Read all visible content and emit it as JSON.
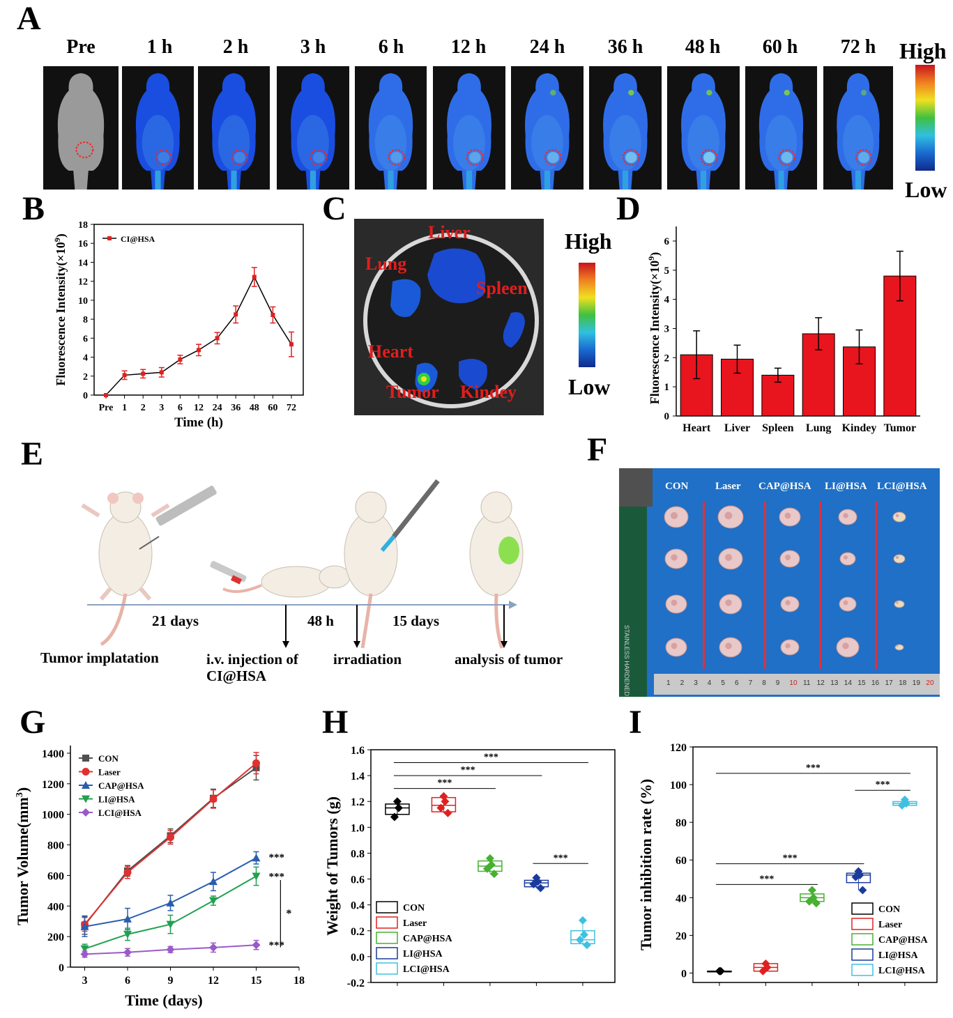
{
  "panel_letters": [
    "A",
    "B",
    "C",
    "D",
    "E",
    "F",
    "G",
    "H",
    "I"
  ],
  "panel_a": {
    "timepoints": [
      "Pre",
      "1 h",
      "2 h",
      "3 h",
      "6 h",
      "12 h",
      "24 h",
      "36 h",
      "48 h",
      "60 h",
      "72 h"
    ],
    "scale_high": "High",
    "scale_low": "Low"
  },
  "panel_c": {
    "organs": [
      "Liver",
      "Lung",
      "Spleen",
      "Heart",
      "Tumor",
      "Kindey"
    ],
    "scale_high": "High",
    "scale_low": "Low"
  },
  "panel_e": {
    "durations": [
      "21 days",
      "48 h",
      "15 days"
    ],
    "events": [
      "Tumor implatation",
      "i.v. injection of",
      "CI@HSA",
      "irradiation",
      "analysis of tumor"
    ]
  },
  "panel_f": {
    "groups": [
      "CON",
      "Laser",
      "CAP@HSA",
      "LI@HSA",
      "LCI@HSA"
    ],
    "ruler_text": "STAINLESS HARDENED",
    "ruler_ticks": [
      "1",
      "2",
      "3",
      "4",
      "5",
      "6",
      "7",
      "8",
      "9",
      "10",
      "11",
      "12",
      "13",
      "14",
      "15",
      "16",
      "17",
      "18",
      "19",
      "20"
    ]
  },
  "chart_data": [
    {
      "id": "B",
      "type": "line",
      "xlabel": "Time (h)",
      "ylabel": "Fluorescence Intensity(×10",
      "ylabel_sup": "9",
      "ylabel_end": ")",
      "categories": [
        "Pre",
        "1",
        "2",
        "3",
        "6",
        "12",
        "24",
        "36",
        "48",
        "60",
        "72"
      ],
      "series": [
        {
          "name": "CI@HSA",
          "values": [
            0,
            2.1,
            2.25,
            2.4,
            3.75,
            4.75,
            6.0,
            8.5,
            12.45,
            8.45,
            5.35
          ],
          "errors": [
            0,
            0.45,
            0.45,
            0.5,
            0.45,
            0.6,
            0.6,
            0.9,
            1.0,
            0.85,
            1.3
          ],
          "color": "#e02020"
        }
      ],
      "ylim": [
        0,
        18
      ],
      "yticks": [
        "0",
        "2",
        "4",
        "6",
        "8",
        "10",
        "12",
        "14",
        "16",
        "18"
      ],
      "legend_position": "top-left"
    },
    {
      "id": "D",
      "type": "bar",
      "xlabel": "",
      "ylabel": "Fluorescence Intensity(×10",
      "ylabel_sup": "9",
      "ylabel_end": ")",
      "categories": [
        "Heart",
        "Liver",
        "Spleen",
        "Lung",
        "Kindey",
        "Tumor"
      ],
      "values": [
        2.1,
        1.95,
        1.4,
        2.82,
        2.37,
        4.8
      ],
      "errors": [
        0.82,
        0.48,
        0.24,
        0.55,
        0.58,
        0.85
      ],
      "ylim": [
        0,
        6.5
      ],
      "yticks": [
        "0",
        "1",
        "2",
        "3",
        "4",
        "5",
        "6"
      ],
      "bar_color": "#e8141e"
    },
    {
      "id": "G",
      "type": "line",
      "xlabel": "Time (days)",
      "ylabel": "Tumor Volume(mm",
      "ylabel_sup": "3",
      "ylabel_end": ")",
      "x": [
        3,
        6,
        9,
        12,
        15
      ],
      "xlim": [
        2,
        18
      ],
      "xticks": [
        "3",
        "6",
        "9",
        "12",
        "15",
        "18"
      ],
      "ylim": [
        0,
        1450
      ],
      "yticks": [
        "0",
        "200",
        "400",
        "600",
        "800",
        "1000",
        "1200",
        "1400"
      ],
      "series": [
        {
          "name": "CON",
          "values": [
            275,
            630,
            860,
            1105,
            1305
          ],
          "errors": [
            60,
            35,
            45,
            60,
            80
          ],
          "color": "#505050",
          "marker": "square"
        },
        {
          "name": "Laser",
          "values": [
            280,
            620,
            850,
            1100,
            1335
          ],
          "errors": [
            45,
            40,
            45,
            60,
            70
          ],
          "color": "#e03030",
          "marker": "circle"
        },
        {
          "name": "CAP@HSA",
          "values": [
            265,
            315,
            420,
            560,
            715
          ],
          "errors": [
            65,
            70,
            50,
            60,
            40
          ],
          "color": "#2a5db0",
          "marker": "triangle"
        },
        {
          "name": "LI@HSA",
          "values": [
            120,
            215,
            280,
            435,
            595
          ],
          "errors": [
            30,
            40,
            60,
            30,
            60
          ],
          "color": "#22a050",
          "marker": "triangle-down"
        },
        {
          "name": "LCI@HSA",
          "values": [
            85,
            97,
            115,
            128,
            145
          ],
          "errors": [
            20,
            25,
            20,
            30,
            30
          ],
          "color": "#9a5ac8",
          "marker": "diamond"
        }
      ],
      "annotations": [
        "***",
        "***",
        "***",
        "*"
      ],
      "legend_position": "top-left"
    },
    {
      "id": "H",
      "type": "box",
      "xlabel": "",
      "ylabel": "Weight of Tumors (g)",
      "ylim": [
        -0.2,
        1.6
      ],
      "yticks": [
        "-0.2",
        "0.0",
        "0.2",
        "0.4",
        "0.6",
        "0.8",
        "1.0",
        "1.2",
        "1.4",
        "1.6"
      ],
      "series": [
        {
          "name": "CON",
          "q1": 1.1,
          "median": 1.15,
          "q3": 1.18,
          "points": [
            1.2,
            1.15,
            1.08
          ],
          "color": "#000000"
        },
        {
          "name": "Laser",
          "q1": 1.12,
          "median": 1.17,
          "q3": 1.23,
          "points": [
            1.24,
            1.2,
            1.15,
            1.11
          ],
          "color": "#e02020"
        },
        {
          "name": "CAP@HSA",
          "q1": 0.66,
          "median": 0.7,
          "q3": 0.74,
          "points": [
            0.76,
            0.71,
            0.68,
            0.64
          ],
          "color": "#46b030"
        },
        {
          "name": "LI@HSA",
          "q1": 0.54,
          "median": 0.57,
          "q3": 0.59,
          "points": [
            0.61,
            0.58,
            0.56,
            0.53
          ],
          "color": "#1a3a9c"
        },
        {
          "name": "LCI@HSA",
          "q1": 0.1,
          "median": 0.13,
          "q3": 0.2,
          "points": [
            0.28,
            0.17,
            0.13,
            0.09
          ],
          "color": "#40c0e0"
        }
      ],
      "significance": [
        {
          "from": 0,
          "to": 2,
          "y": 1.3,
          "label": "***"
        },
        {
          "from": 0,
          "to": 3,
          "y": 1.4,
          "label": "***"
        },
        {
          "from": 0,
          "to": 4,
          "y": 1.5,
          "label": "***"
        },
        {
          "from": 3,
          "to": 4,
          "y": 0.72,
          "label": "***"
        }
      ],
      "legend_position": "bottom-left"
    },
    {
      "id": "I",
      "type": "box",
      "xlabel": "",
      "ylabel": "Tumor inhibition rate (%)",
      "ylim": [
        -5,
        120
      ],
      "yticks": [
        "0",
        "20",
        "40",
        "60",
        "80",
        "100",
        "120"
      ],
      "series": [
        {
          "name": "CON",
          "q1": 1,
          "median": 1,
          "q3": 1,
          "points": [
            1,
            1
          ],
          "color": "#000000"
        },
        {
          "name": "Laser",
          "q1": 1,
          "median": 3,
          "q3": 5,
          "points": [
            5,
            3,
            1
          ],
          "color": "#e02020"
        },
        {
          "name": "CAP@HSA",
          "q1": 38,
          "median": 40,
          "q3": 42,
          "points": [
            44,
            40,
            38,
            37
          ],
          "color": "#46b030"
        },
        {
          "name": "LI@HSA",
          "q1": 48,
          "median": 52,
          "q3": 53,
          "points": [
            54,
            52,
            51,
            44
          ],
          "color": "#1a3a9c"
        },
        {
          "name": "LCI@HSA",
          "q1": 89,
          "median": 90,
          "q3": 91,
          "points": [
            92,
            90,
            89
          ],
          "color": "#40c0e0"
        }
      ],
      "significance": [
        {
          "from": 0,
          "to": 2,
          "y": 47,
          "label": "***"
        },
        {
          "from": 0,
          "to": 3,
          "y": 58,
          "label": "***"
        },
        {
          "from": 0,
          "to": 4,
          "y": 106,
          "label": "***"
        },
        {
          "from": 3,
          "to": 4,
          "y": 97,
          "label": "***"
        }
      ],
      "legend_position": "bottom-right"
    }
  ]
}
